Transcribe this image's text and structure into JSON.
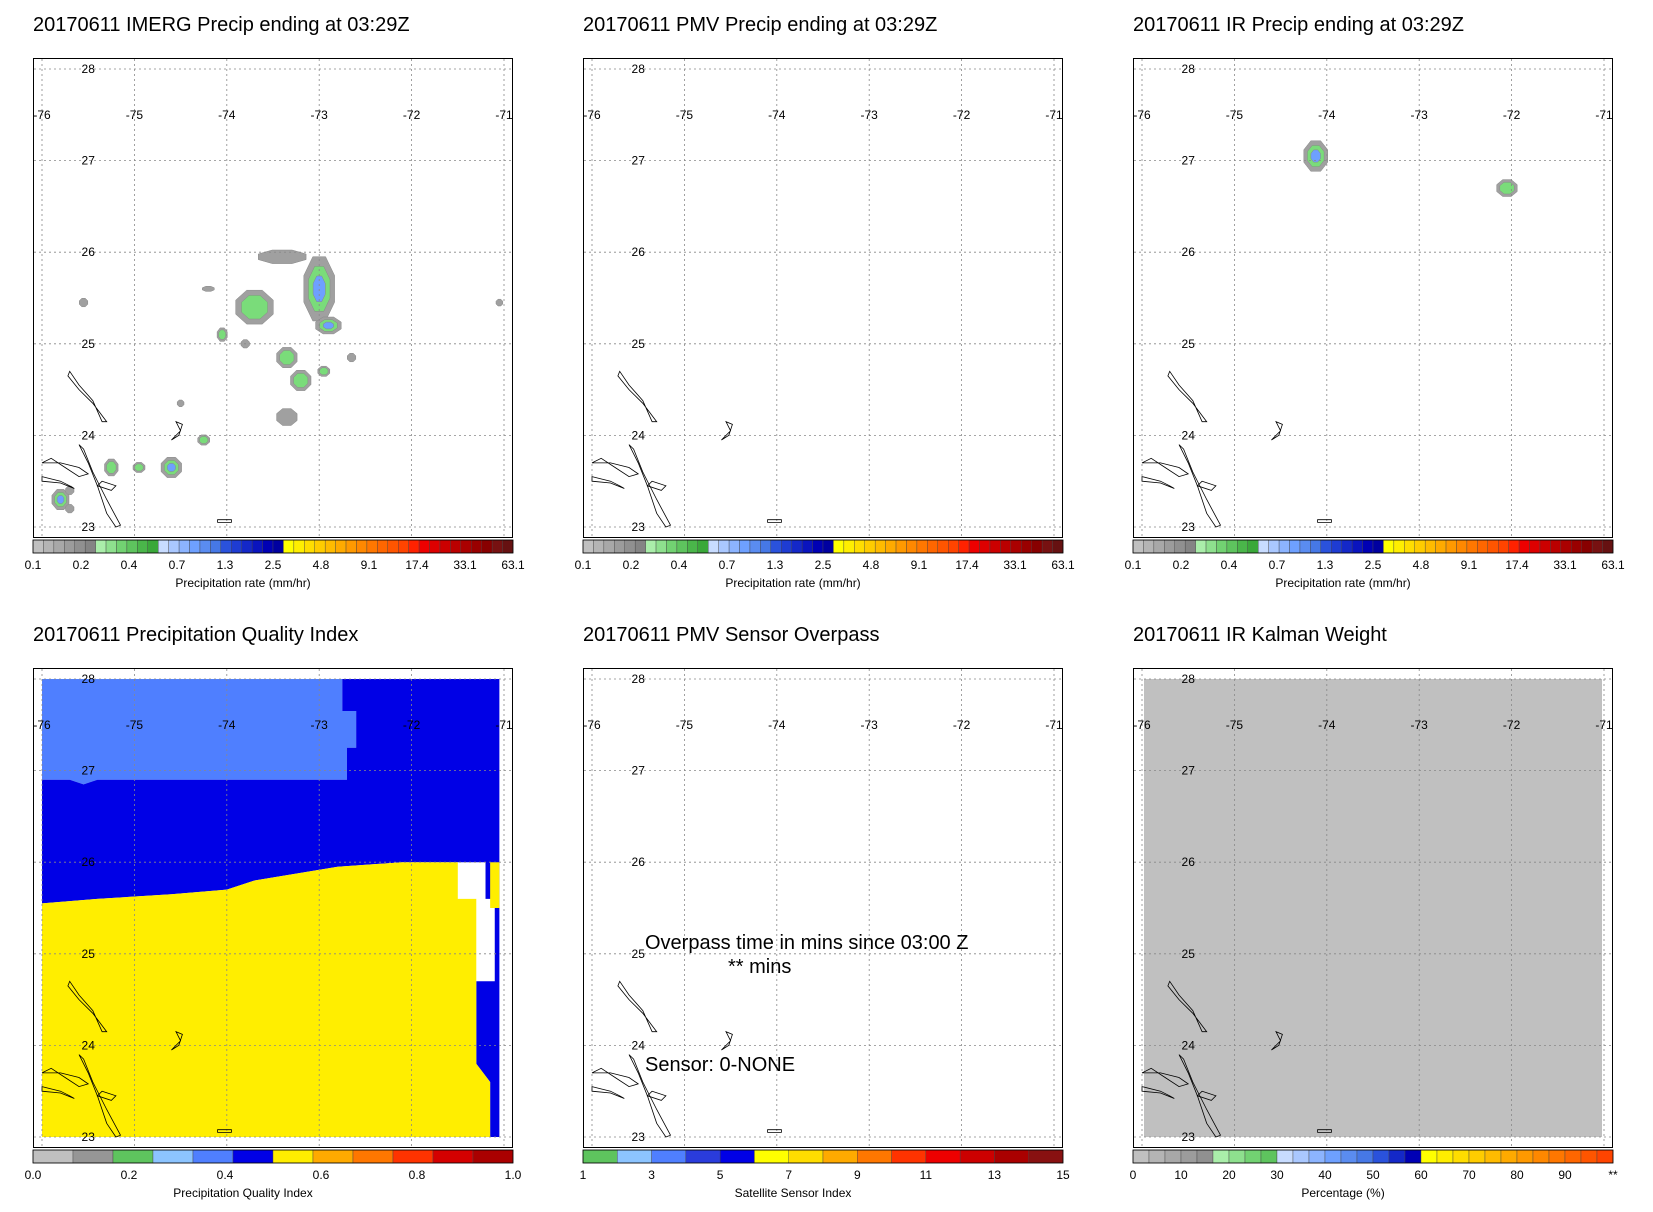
{
  "panels": [
    {
      "title": "20170611 IMERG Precip ending at 03:29Z",
      "type": "precip",
      "colorbar_label": "Precipitation rate (mm/hr)",
      "colorbar_ticks": [
        "0.1",
        "0.2",
        "0.4",
        "0.7",
        "1.3",
        "2.5",
        "4.8",
        "9.1",
        "17.4",
        "33.1",
        "63.1"
      ]
    },
    {
      "title": "20170611 PMV Precip ending at 03:29Z",
      "type": "precip",
      "colorbar_label": "Precipitation rate (mm/hr)",
      "colorbar_ticks": [
        "0.1",
        "0.2",
        "0.4",
        "0.7",
        "1.3",
        "2.5",
        "4.8",
        "9.1",
        "17.4",
        "33.1",
        "63.1"
      ]
    },
    {
      "title": "20170611 IR Precip ending at 03:29Z",
      "type": "precip",
      "colorbar_label": "Precipitation rate (mm/hr)",
      "colorbar_ticks": [
        "0.1",
        "0.2",
        "0.4",
        "0.7",
        "1.3",
        "2.5",
        "4.8",
        "9.1",
        "17.4",
        "33.1",
        "63.1"
      ]
    },
    {
      "title": "20170611 Precipitation Quality Index",
      "type": "quality",
      "colorbar_label": "Precipitation Quality Index",
      "colorbar_ticks": [
        "0.0",
        "0.2",
        "0.4",
        "0.6",
        "0.8",
        "1.0"
      ]
    },
    {
      "title": "20170611 PMV Sensor Overpass",
      "type": "sensor",
      "colorbar_label": "Satellite Sensor Index",
      "colorbar_ticks": [
        "1",
        "3",
        "5",
        "7",
        "9",
        "11",
        "13",
        "15"
      ],
      "overlay_line1": "Overpass time in mins since 03:00 Z",
      "overlay_line2": "** mins",
      "overlay_line3": "Sensor:   0-NONE"
    },
    {
      "title": "20170611 IR Kalman Weight",
      "type": "kalman",
      "colorbar_label": "Percentage (%)",
      "colorbar_ticks": [
        "0",
        "10",
        "20",
        "30",
        "40",
        "50",
        "60",
        "70",
        "80",
        "90",
        "**"
      ]
    }
  ],
  "map_axes": {
    "lon_labels": [
      "-76",
      "-75",
      "-74",
      "-73",
      "-72",
      "-71"
    ],
    "lat_labels": [
      "28",
      "27",
      "26",
      "25",
      "24",
      "23"
    ],
    "lon_range": [
      -76,
      -71
    ],
    "lat_range": [
      23,
      28
    ],
    "gridlines": "dotted"
  },
  "colors": {
    "precip_scale": [
      "#c0c0c0",
      "#b4b4b4",
      "#a8a8a8",
      "#9c9c9c",
      "#909090",
      "#848484",
      "#aaeeaa",
      "#8ee08e",
      "#72d272",
      "#5ec45e",
      "#4ab64a",
      "#3aa83a",
      "#c8dcff",
      "#aac8ff",
      "#8cb4ff",
      "#6ea0ff",
      "#5a8cf0",
      "#4678e6",
      "#2a52dc",
      "#1e3cd2",
      "#1428c8",
      "#0a14be",
      "#0000b4",
      "#0000a0",
      "#ffff00",
      "#ffee00",
      "#ffdd00",
      "#ffcc00",
      "#ffbb00",
      "#ffaa00",
      "#ff9900",
      "#ff8800",
      "#ff7700",
      "#ff6600",
      "#ff5500",
      "#ff4400",
      "#ff2200",
      "#ee0000",
      "#dd0000",
      "#cc0000",
      "#bb0000",
      "#aa0000",
      "#990000",
      "#880000",
      "#771111",
      "#661111"
    ],
    "quality_scale": [
      "#c0c0c0",
      "#969696",
      "#5ec45e",
      "#8cc4ff",
      "#4f7fff",
      "#0000e6",
      "#ffee00",
      "#ffaa00",
      "#ff7700",
      "#ff3300",
      "#d40000",
      "#aa0000"
    ],
    "sensor_scale": [
      "#5ec45e",
      "#8cc4ff",
      "#4f7fff",
      "#2a3cdc",
      "#0000e6",
      "#ffff00",
      "#ffdd00",
      "#ffaa00",
      "#ff7700",
      "#ff3300",
      "#ee0000",
      "#cc0000",
      "#aa0000",
      "#881111"
    ],
    "kalman_scale": [
      "#c0c0c0",
      "#b4b4b4",
      "#a8a8a8",
      "#9c9c9c",
      "#909090",
      "#aaeeaa",
      "#8ee08e",
      "#72d272",
      "#5ec45e",
      "#c8dcff",
      "#aac8ff",
      "#8cb4ff",
      "#6ea0ff",
      "#5a8cf0",
      "#4678e6",
      "#2a52dc",
      "#1428c8",
      "#0000b4",
      "#ffff00",
      "#ffee00",
      "#ffdd00",
      "#ffcc00",
      "#ffbb00",
      "#ffaa00",
      "#ff9900",
      "#ff8800",
      "#ff7700",
      "#ff6600",
      "#ff5500",
      "#ff4400"
    ],
    "quality_light_blue": "#4f7fff",
    "quality_dark_blue": "#0000e6",
    "quality_yellow": "#ffee00",
    "kalman_fill": "#c0c0c0",
    "precip_gray": "#a0a0a0",
    "precip_green": "#7adc7a",
    "precip_blue": "#6ea0ff"
  }
}
